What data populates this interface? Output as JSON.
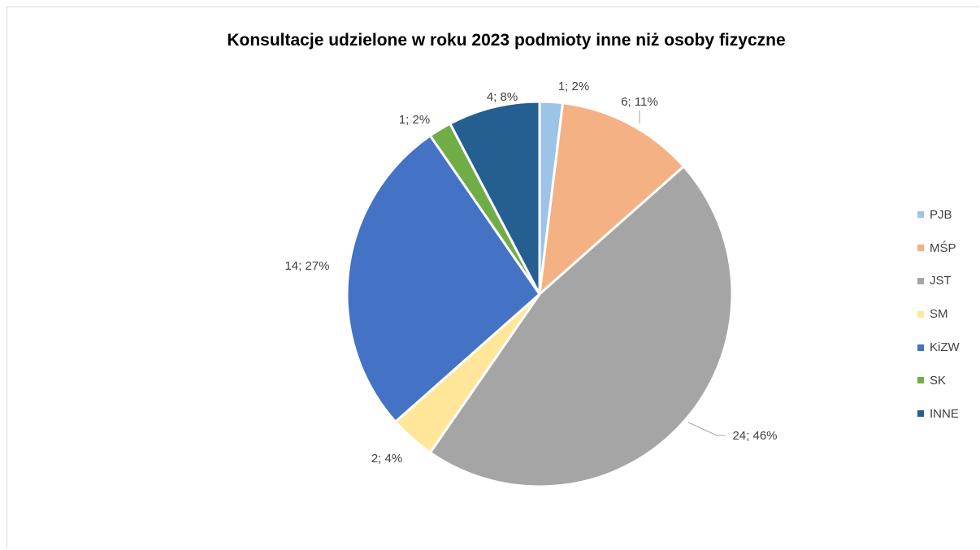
{
  "chart_data": {
    "type": "pie",
    "title": "Konsultacje udzielone w roku 2023 podmioty inne niż osoby fizyczne",
    "slices": [
      {
        "name": "PJB",
        "value": 1,
        "percent": 2,
        "label": "1; 2%",
        "color": "#9dc3e6"
      },
      {
        "name": "MŚP",
        "value": 6,
        "percent": 11,
        "label": "6; 11%",
        "color": "#f4b183"
      },
      {
        "name": "JST",
        "value": 24,
        "percent": 46,
        "label": "24; 46%",
        "color": "#a5a5a5"
      },
      {
        "name": "SM",
        "value": 2,
        "percent": 4,
        "label": "2; 4%",
        "color": "#ffe699"
      },
      {
        "name": "KiZW",
        "value": 14,
        "percent": 27,
        "label": "14; 27%",
        "color": "#4472c4"
      },
      {
        "name": "SK",
        "value": 1,
        "percent": 2,
        "label": "1; 2%",
        "color": "#70ad47"
      },
      {
        "name": "INNE",
        "value": 4,
        "percent": 8,
        "label": "4; 8%",
        "color": "#255e91"
      }
    ],
    "legend_position": "right",
    "start_angle": "top, clockwise"
  }
}
